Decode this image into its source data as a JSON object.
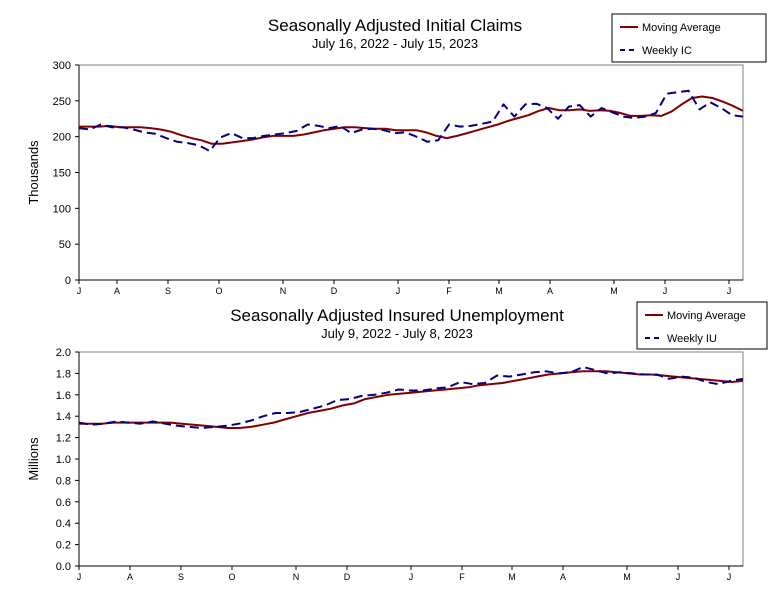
{
  "chart_data": [
    {
      "type": "line",
      "title": "Seasonally Adjusted Initial Claims",
      "subtitle": "July 16, 2022 - July 15, 2023",
      "ylabel": "Thousands",
      "xlabel": "",
      "ylim": [
        0,
        300
      ],
      "yticks": [
        "0",
        "50",
        "100",
        "150",
        "200",
        "250",
        "300"
      ],
      "month_labels": [
        "J",
        "A",
        "S",
        "O",
        "N",
        "D",
        "J",
        "F",
        "M",
        "A",
        "M",
        "J",
        "J"
      ],
      "legend_position": "top-right",
      "grid": false,
      "colors": {
        "moving_average": "#800000",
        "weekly": "#000080"
      },
      "series": [
        {
          "name": "Moving Average",
          "style": "solid",
          "values": [
            214,
            214,
            214,
            215,
            213,
            213,
            213,
            212,
            210,
            207,
            202,
            198,
            195,
            190,
            190,
            192,
            194,
            196,
            199,
            201,
            201,
            201,
            203,
            206,
            209,
            211,
            213,
            213,
            212,
            211,
            211,
            209,
            209,
            209,
            206,
            201,
            198,
            201,
            205,
            209,
            213,
            217,
            222,
            226,
            230,
            236,
            240,
            237,
            237,
            238,
            236,
            237,
            236,
            233,
            229,
            229,
            230,
            229,
            235,
            245,
            254,
            256,
            254,
            249,
            243,
            236
          ]
        },
        {
          "name": "Weekly IC",
          "style": "dashed",
          "values": [
            212,
            210,
            217,
            213,
            213,
            210,
            206,
            204,
            198,
            193,
            191,
            188,
            180,
            199,
            205,
            198,
            198,
            201,
            203,
            205,
            208,
            217,
            215,
            212,
            215,
            205,
            210,
            211,
            209,
            205,
            206,
            200,
            193,
            195,
            217,
            214,
            215,
            218,
            221,
            245,
            228,
            245,
            246,
            240,
            225,
            242,
            244,
            228,
            240,
            234,
            228,
            226,
            228,
            233,
            260,
            262,
            264,
            238,
            248,
            240,
            230,
            228
          ]
        }
      ]
    },
    {
      "type": "line",
      "title": "Seasonally Adjusted Insured Unemployment",
      "subtitle": "July 9, 2022 - July 8, 2023",
      "ylabel": "Millions",
      "xlabel": "",
      "ylim": [
        0,
        2.0
      ],
      "yticks": [
        "0.0",
        "0.2",
        "0.4",
        "0.6",
        "0.8",
        "1.0",
        "1.2",
        "1.4",
        "1.6",
        "1.8",
        "2.0"
      ],
      "month_labels": [
        "J",
        "A",
        "S",
        "O",
        "N",
        "D",
        "J",
        "F",
        "M",
        "A",
        "M",
        "J",
        "J"
      ],
      "legend_position": "top-right",
      "grid": false,
      "colors": {
        "moving_average": "#800000",
        "weekly": "#000080"
      },
      "series": [
        {
          "name": "Moving Average",
          "style": "solid",
          "values": [
            1.33,
            1.33,
            1.33,
            1.34,
            1.34,
            1.34,
            1.34,
            1.34,
            1.34,
            1.33,
            1.32,
            1.31,
            1.3,
            1.29,
            1.29,
            1.3,
            1.32,
            1.34,
            1.37,
            1.4,
            1.43,
            1.45,
            1.47,
            1.5,
            1.52,
            1.56,
            1.58,
            1.6,
            1.61,
            1.62,
            1.63,
            1.64,
            1.65,
            1.66,
            1.67,
            1.69,
            1.7,
            1.71,
            1.73,
            1.75,
            1.77,
            1.79,
            1.8,
            1.81,
            1.82,
            1.82,
            1.82,
            1.81,
            1.8,
            1.79,
            1.79,
            1.78,
            1.77,
            1.76,
            1.75,
            1.74,
            1.73,
            1.72,
            1.73
          ]
        },
        {
          "name": "Weekly IU",
          "style": "dashed",
          "values": [
            1.34,
            1.32,
            1.33,
            1.35,
            1.34,
            1.33,
            1.35,
            1.33,
            1.31,
            1.3,
            1.29,
            1.3,
            1.31,
            1.33,
            1.36,
            1.4,
            1.43,
            1.43,
            1.44,
            1.47,
            1.5,
            1.55,
            1.56,
            1.59,
            1.6,
            1.62,
            1.65,
            1.64,
            1.64,
            1.66,
            1.67,
            1.72,
            1.7,
            1.71,
            1.78,
            1.77,
            1.79,
            1.81,
            1.82,
            1.8,
            1.81,
            1.86,
            1.83,
            1.8,
            1.81,
            1.8,
            1.79,
            1.79,
            1.75,
            1.77,
            1.76,
            1.72,
            1.7,
            1.73,
            1.75
          ]
        }
      ]
    }
  ]
}
